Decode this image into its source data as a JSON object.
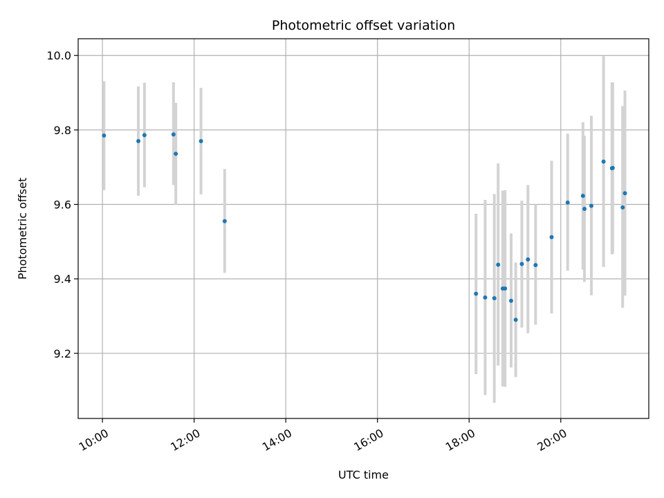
{
  "chart_data": {
    "type": "scatter",
    "title": "Photometric offset variation",
    "xlabel": "UTC time",
    "ylabel": "Photometric offset",
    "x_ticks": [
      "10:00",
      "12:00",
      "14:00",
      "16:00",
      "18:00",
      "20:00"
    ],
    "x_tick_hours": [
      10,
      12,
      14,
      16,
      18,
      20
    ],
    "y_ticks": [
      "9.2",
      "9.4",
      "9.6",
      "9.8",
      "10.0"
    ],
    "y_tick_values": [
      9.2,
      9.4,
      9.6,
      9.8,
      10.0
    ],
    "xlim_hours": [
      9.47,
      21.92
    ],
    "ylim": [
      9.025,
      10.045
    ],
    "grid": true,
    "colors": {
      "point": "#1f77b4",
      "errorbar": "#d3d3d3",
      "grid": "#b0b0b0",
      "axes": "#000000"
    },
    "points": [
      {
        "time": "10:02",
        "y": 9.785,
        "lo": 9.638,
        "hi": 9.931
      },
      {
        "time": "10:47",
        "y": 9.77,
        "lo": 9.623,
        "hi": 9.917
      },
      {
        "time": "10:55",
        "y": 9.786,
        "lo": 9.646,
        "hi": 9.927
      },
      {
        "time": "11:33",
        "y": 9.788,
        "lo": 9.652,
        "hi": 9.928
      },
      {
        "time": "11:36",
        "y": 9.736,
        "lo": 9.6,
        "hi": 9.873
      },
      {
        "time": "12:09",
        "y": 9.77,
        "lo": 9.627,
        "hi": 9.913
      },
      {
        "time": "12:40",
        "y": 9.555,
        "lo": 9.416,
        "hi": 9.695
      },
      {
        "time": "18:09",
        "y": 9.36,
        "lo": 9.144,
        "hi": 9.575
      },
      {
        "time": "18:21",
        "y": 9.35,
        "lo": 9.088,
        "hi": 9.612
      },
      {
        "time": "18:33",
        "y": 9.348,
        "lo": 9.067,
        "hi": 9.628
      },
      {
        "time": "18:38",
        "y": 9.438,
        "lo": 9.167,
        "hi": 9.71
      },
      {
        "time": "18:44",
        "y": 9.374,
        "lo": 9.111,
        "hi": 9.637
      },
      {
        "time": "18:47",
        "y": 9.374,
        "lo": 9.11,
        "hi": 9.638
      },
      {
        "time": "18:55",
        "y": 9.341,
        "lo": 9.162,
        "hi": 9.522
      },
      {
        "time": "19:01",
        "y": 9.29,
        "lo": 9.136,
        "hi": 9.444
      },
      {
        "time": "19:09",
        "y": 9.44,
        "lo": 9.269,
        "hi": 9.61
      },
      {
        "time": "19:17",
        "y": 9.452,
        "lo": 9.254,
        "hi": 9.652
      },
      {
        "time": "19:27",
        "y": 9.437,
        "lo": 9.277,
        "hi": 9.6
      },
      {
        "time": "19:48",
        "y": 9.512,
        "lo": 9.307,
        "hi": 9.717
      },
      {
        "time": "20:09",
        "y": 9.605,
        "lo": 9.422,
        "hi": 9.79
      },
      {
        "time": "20:29",
        "y": 9.623,
        "lo": 9.425,
        "hi": 9.821
      },
      {
        "time": "20:31",
        "y": 9.588,
        "lo": 9.392,
        "hi": 9.785
      },
      {
        "time": "20:40",
        "y": 9.596,
        "lo": 9.356,
        "hi": 9.838
      },
      {
        "time": "20:56",
        "y": 9.715,
        "lo": 9.432,
        "hi": 9.998
      },
      {
        "time": "21:07",
        "y": 9.697,
        "lo": 9.466,
        "hi": 9.928
      },
      {
        "time": "21:08",
        "y": 9.698,
        "lo": 9.468,
        "hi": 9.928
      },
      {
        "time": "21:21",
        "y": 9.592,
        "lo": 9.322,
        "hi": 9.864
      },
      {
        "time": "21:24",
        "y": 9.63,
        "lo": 9.355,
        "hi": 9.906
      }
    ]
  }
}
